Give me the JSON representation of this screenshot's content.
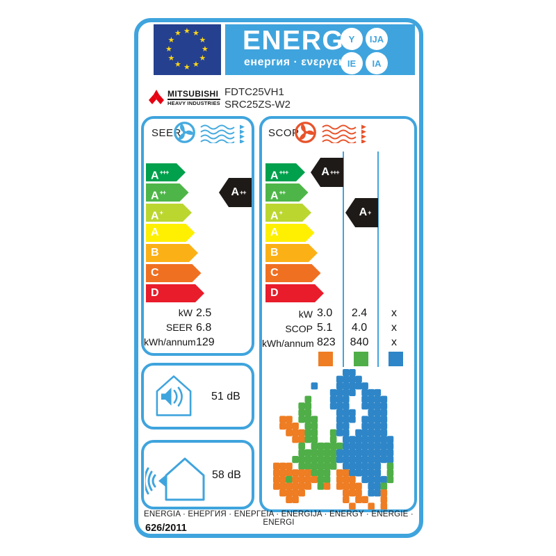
{
  "header": {
    "title": "ENERG",
    "subtitle": "енергия · ενεργεια",
    "suffix_circles": [
      "Y",
      "IJA",
      "IE",
      "IA"
    ]
  },
  "brand": {
    "name": "MITSUBISHI",
    "division": "HEAVY INDUSTRIES",
    "models": [
      "FDTC25VH1",
      "SRC25ZS-W2"
    ]
  },
  "scale": {
    "grades": [
      "A+++",
      "A++",
      "A+",
      "A",
      "B",
      "C",
      "D"
    ],
    "colors": [
      "#00A04C",
      "#4EB648",
      "#BCD630",
      "#FEF000",
      "#FBB116",
      "#F07022",
      "#E91C2B"
    ]
  },
  "cooling": {
    "label": "SEER",
    "rating": "A++",
    "rating_row": 1,
    "specs": [
      {
        "label": "kW",
        "value": "2.5"
      },
      {
        "label": "SEER",
        "value": "6.8"
      },
      {
        "label": "kWh/annum",
        "value": "129"
      }
    ]
  },
  "heating": {
    "label": "SCOP",
    "badges": [
      {
        "label": "A+++",
        "row": 0,
        "col": 0
      },
      {
        "label": "A+",
        "row": 2,
        "col": 1
      }
    ],
    "table": [
      {
        "label": "kW",
        "values": [
          "3.0",
          "2.4",
          "x"
        ]
      },
      {
        "label": "SCOP",
        "values": [
          "5.1",
          "4.0",
          "x"
        ]
      },
      {
        "label": "kWh/annum",
        "values": [
          "823",
          "840",
          "x"
        ]
      }
    ],
    "zone_legend": [
      "#EE7D23",
      "#4FAE47",
      "#2E86C8"
    ],
    "map_zones": {
      "O": "#EE7D23",
      "G": "#4FAE47",
      "B": "#2E86C8"
    },
    "map_grid": [
      "...........BB.........",
      "..........BBBB........",
      "......B...BBBBB.......",
      ".........BBBB.BBB.....",
      ".....G...BBB..BBBB....",
      "....GG...BBB..BBBB....",
      "....GG....BBB..BBB....",
      ".OO.GGG...BBB.BBBB....",
      ".OOO.GG...BB..BBBB....",
      "..OOOGG..GBB.BBBBB....",
      "...OOGG..G.BBBBBBBB...",
      "....G.GGGGGBBBBBBBB...",
      "....GGGGGGBBBBBBBBB...",
      "...GGGGGGGBBBBBBBBB...",
      "OOO.GGGGGG.BBBBBB.G...",
      "OOOOOOGGG.OOBBBBB.G...",
      "OOGOOOOGG.OOO.BBBBG...",
      "OOOOOO.GO.OOOO.BBG....",
      ".OOOO......OOO.BBO....",
      "..OO.......O.OO..O....",
      "............O..O.O...."
    ]
  },
  "noise": {
    "indoor": "51 dB",
    "outdoor": "58 dB"
  },
  "footer": {
    "strip": "ENERGIA · ЕНЕРГИЯ · ΕΝΕΡΓΕΙΑ · ENERGIJA · ENERGY · ENERGIE · ENERGI",
    "regulation": "626/2011"
  },
  "theme": {
    "blue": "#3FA4DD",
    "eu_blue": "#24408F",
    "star_yellow": "#FFD617",
    "black": "#1E1A18",
    "fan_cool": "#45AADF",
    "fan_heat": "#E8532B"
  }
}
